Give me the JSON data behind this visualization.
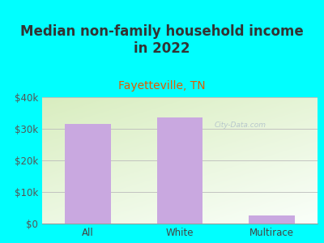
{
  "title": "Median non-family household income\nin 2022",
  "subtitle": "Fayetteville, TN",
  "categories": [
    "All",
    "White",
    "Multirace"
  ],
  "values": [
    31500,
    33500,
    2500
  ],
  "bar_color": "#c9a8e0",
  "title_fontsize": 12,
  "subtitle_fontsize": 10,
  "subtitle_color": "#e05c00",
  "title_color": "#333333",
  "background_color": "#00ffff",
  "plot_bg_topleft": "#d8ecc0",
  "plot_bg_bottomright": "#f8f8f8",
  "ytick_labels": [
    "$0",
    "$10k",
    "$20k",
    "$30k",
    "$40k"
  ],
  "ytick_values": [
    0,
    10000,
    20000,
    30000,
    40000
  ],
  "ylim": [
    0,
    40000
  ],
  "watermark": "City-Data.com",
  "bar_width": 0.5
}
